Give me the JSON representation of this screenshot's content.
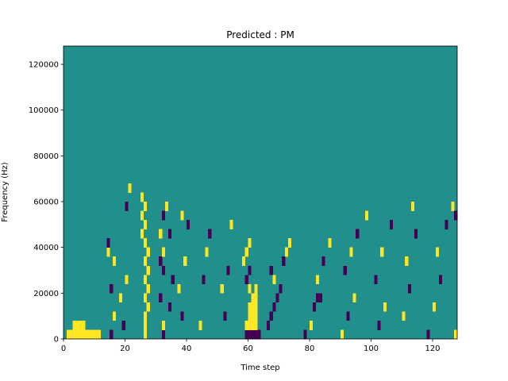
{
  "chart_data": {
    "type": "heatmap",
    "title": "Predicted : PM",
    "xlabel": "Time step",
    "ylabel": "Frequency (Hz)",
    "xlim": [
      0,
      128
    ],
    "ylim": [
      0,
      128000
    ],
    "xticks": [
      0,
      20,
      40,
      60,
      80,
      100,
      120
    ],
    "xtick_labels": [
      "0",
      "20",
      "40",
      "60",
      "80",
      "100",
      "120"
    ],
    "yticks": [
      0,
      20000,
      40000,
      60000,
      80000,
      100000,
      120000
    ],
    "ytick_labels": [
      "0",
      "20000",
      "40000",
      "60000",
      "80000",
      "100000",
      "120000"
    ],
    "rows": 32,
    "cols": 128,
    "background_value": 0,
    "colormap": {
      "-1": "#440154",
      "0": "#21908d",
      "1": "#fde725"
    },
    "cells": [
      {
        "t": 1,
        "f": 0,
        "v": 1
      },
      {
        "t": 2,
        "f": 0,
        "v": 1
      },
      {
        "t": 3,
        "f": 0,
        "v": 1
      },
      {
        "t": 4,
        "f": 0,
        "v": 1
      },
      {
        "t": 5,
        "f": 0,
        "v": 1
      },
      {
        "t": 6,
        "f": 0,
        "v": 1
      },
      {
        "t": 7,
        "f": 0,
        "v": 1
      },
      {
        "t": 8,
        "f": 0,
        "v": 1
      },
      {
        "t": 9,
        "f": 0,
        "v": 1
      },
      {
        "t": 10,
        "f": 0,
        "v": 1
      },
      {
        "t": 11,
        "f": 0,
        "v": 1
      },
      {
        "t": 3,
        "f": 1,
        "v": 1
      },
      {
        "t": 4,
        "f": 1,
        "v": 1
      },
      {
        "t": 5,
        "f": 1,
        "v": 1
      },
      {
        "t": 6,
        "f": 1,
        "v": 1
      },
      {
        "t": 15,
        "f": 0,
        "v": -1
      },
      {
        "t": 16,
        "f": 2,
        "v": 1
      },
      {
        "t": 15,
        "f": 5,
        "v": -1
      },
      {
        "t": 16,
        "f": 8,
        "v": 1
      },
      {
        "t": 14,
        "f": 9,
        "v": 1
      },
      {
        "t": 14,
        "f": 10,
        "v": -1
      },
      {
        "t": 18,
        "f": 4,
        "v": 1
      },
      {
        "t": 19,
        "f": 1,
        "v": -1
      },
      {
        "t": 20,
        "f": 6,
        "v": 1
      },
      {
        "t": 20,
        "f": 14,
        "v": -1
      },
      {
        "t": 21,
        "f": 16,
        "v": 1
      },
      {
        "t": 26,
        "f": 0,
        "v": 1
      },
      {
        "t": 26,
        "f": 1,
        "v": 1
      },
      {
        "t": 26,
        "f": 2,
        "v": 1
      },
      {
        "t": 27,
        "f": 3,
        "v": 1
      },
      {
        "t": 26,
        "f": 4,
        "v": 1
      },
      {
        "t": 27,
        "f": 5,
        "v": 1
      },
      {
        "t": 26,
        "f": 6,
        "v": 1
      },
      {
        "t": 27,
        "f": 7,
        "v": 1
      },
      {
        "t": 26,
        "f": 8,
        "v": 1
      },
      {
        "t": 27,
        "f": 9,
        "v": 1
      },
      {
        "t": 26,
        "f": 10,
        "v": 1
      },
      {
        "t": 25,
        "f": 11,
        "v": 1
      },
      {
        "t": 26,
        "f": 12,
        "v": 1
      },
      {
        "t": 25,
        "f": 13,
        "v": 1
      },
      {
        "t": 26,
        "f": 14,
        "v": 1
      },
      {
        "t": 25,
        "f": 15,
        "v": 1
      },
      {
        "t": 32,
        "f": 0,
        "v": -1
      },
      {
        "t": 32,
        "f": 1,
        "v": 1
      },
      {
        "t": 31,
        "f": 4,
        "v": -1
      },
      {
        "t": 32,
        "f": 7,
        "v": -1
      },
      {
        "t": 31,
        "f": 8,
        "v": -1
      },
      {
        "t": 32,
        "f": 9,
        "v": 1
      },
      {
        "t": 31,
        "f": 11,
        "v": 1
      },
      {
        "t": 32,
        "f": 13,
        "v": -1
      },
      {
        "t": 33,
        "f": 14,
        "v": 1
      },
      {
        "t": 34,
        "f": 3,
        "v": -1
      },
      {
        "t": 35,
        "f": 6,
        "v": -1
      },
      {
        "t": 34,
        "f": 11,
        "v": -1
      },
      {
        "t": 38,
        "f": 2,
        "v": -1
      },
      {
        "t": 37,
        "f": 5,
        "v": 1
      },
      {
        "t": 39,
        "f": 8,
        "v": 1
      },
      {
        "t": 40,
        "f": 12,
        "v": -1
      },
      {
        "t": 38,
        "f": 13,
        "v": 1
      },
      {
        "t": 44,
        "f": 1,
        "v": 1
      },
      {
        "t": 45,
        "f": 6,
        "v": -1
      },
      {
        "t": 46,
        "f": 9,
        "v": 1
      },
      {
        "t": 47,
        "f": 11,
        "v": -1
      },
      {
        "t": 52,
        "f": 2,
        "v": -1
      },
      {
        "t": 51,
        "f": 5,
        "v": 1
      },
      {
        "t": 53,
        "f": 7,
        "v": -1
      },
      {
        "t": 54,
        "f": 12,
        "v": 1
      },
      {
        "t": 59,
        "f": 0,
        "v": -1
      },
      {
        "t": 60,
        "f": 0,
        "v": -1
      },
      {
        "t": 61,
        "f": 0,
        "v": -1
      },
      {
        "t": 62,
        "f": 0,
        "v": -1
      },
      {
        "t": 63,
        "f": 0,
        "v": -1
      },
      {
        "t": 59,
        "f": 1,
        "v": 1
      },
      {
        "t": 60,
        "f": 1,
        "v": 1
      },
      {
        "t": 61,
        "f": 1,
        "v": 1
      },
      {
        "t": 62,
        "f": 1,
        "v": 1
      },
      {
        "t": 60,
        "f": 2,
        "v": 1
      },
      {
        "t": 61,
        "f": 2,
        "v": 1
      },
      {
        "t": 62,
        "f": 2,
        "v": 1
      },
      {
        "t": 60,
        "f": 3,
        "v": 1
      },
      {
        "t": 61,
        "f": 3,
        "v": 1
      },
      {
        "t": 62,
        "f": 3,
        "v": 1
      },
      {
        "t": 61,
        "f": 4,
        "v": 1
      },
      {
        "t": 62,
        "f": 4,
        "v": 1
      },
      {
        "t": 60,
        "f": 5,
        "v": 1
      },
      {
        "t": 62,
        "f": 5,
        "v": 1
      },
      {
        "t": 59,
        "f": 6,
        "v": -1
      },
      {
        "t": 60,
        "f": 7,
        "v": -1
      },
      {
        "t": 58,
        "f": 8,
        "v": 1
      },
      {
        "t": 59,
        "f": 9,
        "v": 1
      },
      {
        "t": 60,
        "f": 10,
        "v": 1
      },
      {
        "t": 66,
        "f": 1,
        "v": -1
      },
      {
        "t": 67,
        "f": 2,
        "v": -1
      },
      {
        "t": 68,
        "f": 3,
        "v": -1
      },
      {
        "t": 69,
        "f": 4,
        "v": -1
      },
      {
        "t": 70,
        "f": 5,
        "v": -1
      },
      {
        "t": 68,
        "f": 6,
        "v": 1
      },
      {
        "t": 67,
        "f": 7,
        "v": -1
      },
      {
        "t": 71,
        "f": 8,
        "v": -1
      },
      {
        "t": 72,
        "f": 9,
        "v": 1
      },
      {
        "t": 73,
        "f": 10,
        "v": 1
      },
      {
        "t": 78,
        "f": 0,
        "v": -1
      },
      {
        "t": 80,
        "f": 1,
        "v": 1
      },
      {
        "t": 81,
        "f": 3,
        "v": -1
      },
      {
        "t": 82,
        "f": 4,
        "v": -1
      },
      {
        "t": 83,
        "f": 4,
        "v": -1
      },
      {
        "t": 82,
        "f": 6,
        "v": 1
      },
      {
        "t": 84,
        "f": 8,
        "v": -1
      },
      {
        "t": 86,
        "f": 10,
        "v": 1
      },
      {
        "t": 90,
        "f": 0,
        "v": 1
      },
      {
        "t": 92,
        "f": 2,
        "v": -1
      },
      {
        "t": 94,
        "f": 4,
        "v": 1
      },
      {
        "t": 91,
        "f": 7,
        "v": -1
      },
      {
        "t": 93,
        "f": 9,
        "v": 1
      },
      {
        "t": 95,
        "f": 11,
        "v": -1
      },
      {
        "t": 98,
        "f": 13,
        "v": 1
      },
      {
        "t": 102,
        "f": 1,
        "v": -1
      },
      {
        "t": 104,
        "f": 3,
        "v": 1
      },
      {
        "t": 101,
        "f": 6,
        "v": -1
      },
      {
        "t": 103,
        "f": 9,
        "v": 1
      },
      {
        "t": 106,
        "f": 12,
        "v": -1
      },
      {
        "t": 110,
        "f": 2,
        "v": 1
      },
      {
        "t": 112,
        "f": 5,
        "v": -1
      },
      {
        "t": 111,
        "f": 8,
        "v": 1
      },
      {
        "t": 114,
        "f": 11,
        "v": -1
      },
      {
        "t": 113,
        "f": 14,
        "v": 1
      },
      {
        "t": 118,
        "f": 0,
        "v": -1
      },
      {
        "t": 120,
        "f": 3,
        "v": 1
      },
      {
        "t": 122,
        "f": 6,
        "v": -1
      },
      {
        "t": 121,
        "f": 9,
        "v": 1
      },
      {
        "t": 124,
        "f": 12,
        "v": -1
      },
      {
        "t": 126,
        "f": 14,
        "v": 1
      },
      {
        "t": 127,
        "f": 0,
        "v": 1
      },
      {
        "t": 127,
        "f": 13,
        "v": -1
      }
    ]
  }
}
